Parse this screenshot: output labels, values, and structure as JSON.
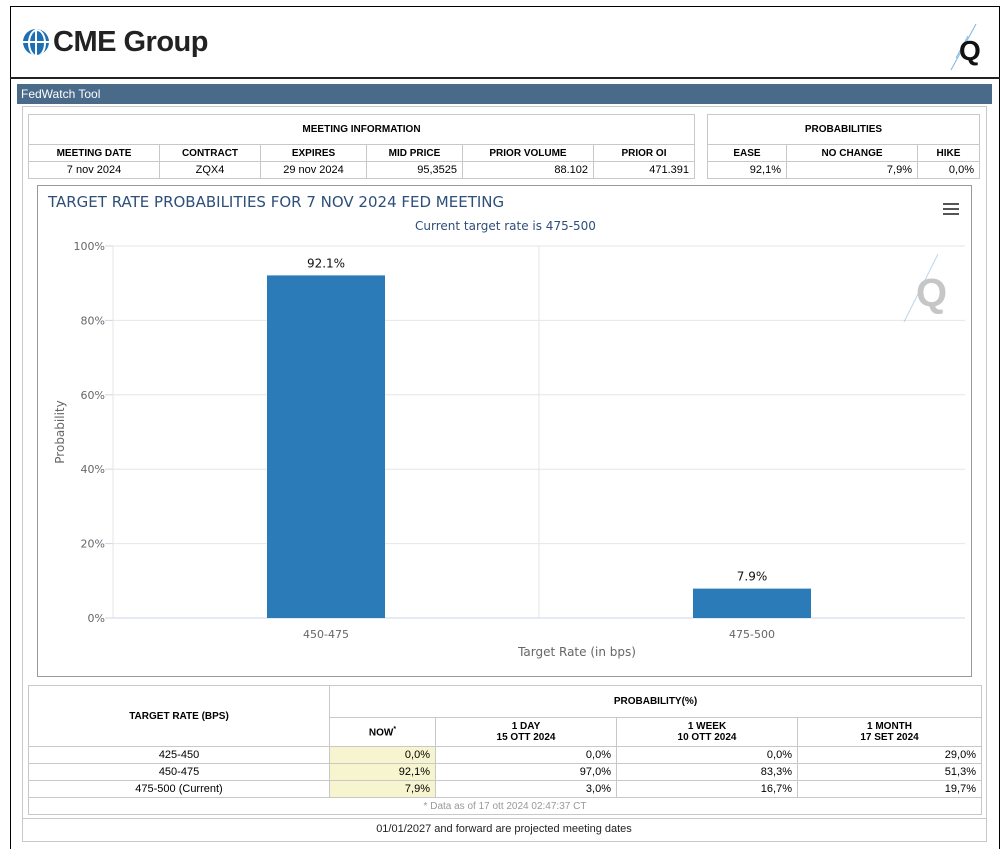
{
  "brand": {
    "name": "CME Group"
  },
  "window": {
    "title": "FedWatch Tool"
  },
  "meeting_info": {
    "title": "MEETING INFORMATION",
    "headers": [
      "MEETING DATE",
      "CONTRACT",
      "EXPIRES",
      "MID PRICE",
      "PRIOR VOLUME",
      "PRIOR OI"
    ],
    "row": [
      "7 nov 2024",
      "ZQX4",
      "29 nov 2024",
      "95,3525",
      "88.102",
      "471.391"
    ]
  },
  "probabilities": {
    "title": "PROBABILITIES",
    "headers": [
      "EASE",
      "NO CHANGE",
      "HIKE"
    ],
    "row": [
      "92,1%",
      "7,9%",
      "0,0%"
    ]
  },
  "chart_data": {
    "type": "bar",
    "title": "TARGET RATE PROBABILITIES FOR 7 NOV 2024 FED MEETING",
    "subtitle": "Current target rate is 475-500",
    "xlabel": "Target Rate (in bps)",
    "ylabel": "Probability",
    "categories": [
      "450-475",
      "475-500"
    ],
    "values": [
      92.1,
      7.9
    ],
    "data_labels": [
      "92.1%",
      "7.9%"
    ],
    "ylim": [
      0,
      100
    ],
    "yticks": [
      "0%",
      "20%",
      "40%",
      "60%",
      "80%",
      "100%"
    ],
    "color": "#2b7bb9",
    "grid": true
  },
  "lower_table": {
    "col_target": "TARGET RATE (BPS)",
    "col_prob": "PROBABILITY(%)",
    "sub_headers": [
      {
        "line1": "NOW",
        "line2": ""
      },
      {
        "line1": "1 DAY",
        "line2": "15 OTT 2024"
      },
      {
        "line1": "1 WEEK",
        "line2": "10 OTT 2024"
      },
      {
        "line1": "1 MONTH",
        "line2": "17 SET 2024"
      }
    ],
    "now_marker": "*",
    "rows": [
      {
        "rate": "425-450",
        "now": "0,0%",
        "day": "0,0%",
        "week": "0,0%",
        "month": "29,0%"
      },
      {
        "rate": "450-475",
        "now": "92,1%",
        "day": "97,0%",
        "week": "83,3%",
        "month": "51,3%"
      },
      {
        "rate": "475-500 (Current)",
        "now": "7,9%",
        "day": "3,0%",
        "week": "16,7%",
        "month": "19,7%"
      }
    ],
    "footnote": "* Data as of 17 ott 2024 02:47:37 CT"
  },
  "projected_note": "01/01/2027 and forward are projected meeting dates"
}
